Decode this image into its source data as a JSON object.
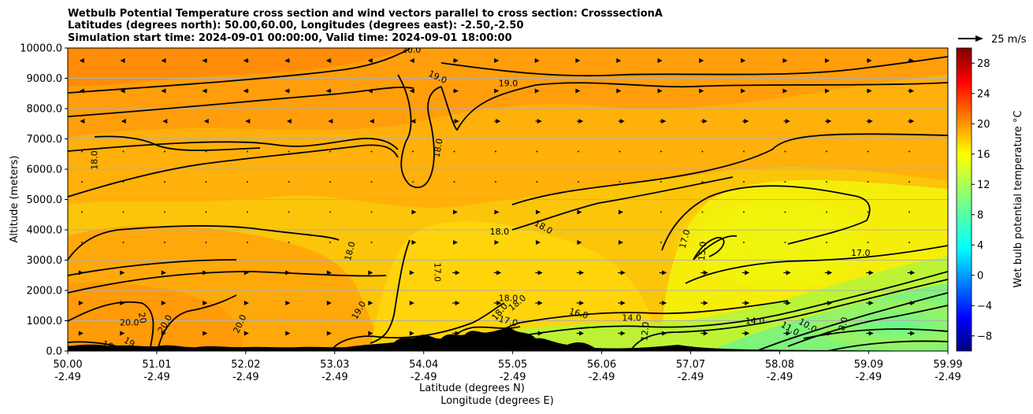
{
  "chart_data": {
    "type": "heatmap",
    "title_lines": [
      "Wetbulb Potential Temperature cross section and wind vectors parallel to cross section: CrosssectionA",
      "Latitudes (degrees north): 50.00,60.00, Longitudes (degrees east): -2.50,-2.50",
      "Simulation start time: 2024-09-01 00:00:00, Valid time: 2024-09-01 18:00:00"
    ],
    "ylabel": "Altitude (meters)",
    "xlabel_lines": [
      "Latitude (degrees N)",
      "Longitude (degrees E)"
    ],
    "ylim": [
      0,
      10000
    ],
    "xlim": [
      50.0,
      59.99
    ],
    "y_ticks": [
      {
        "value": 0,
        "label": "0.0"
      },
      {
        "value": 1000,
        "label": "1000.0"
      },
      {
        "value": 2000,
        "label": "2000.0"
      },
      {
        "value": 3000,
        "label": "3000.0"
      },
      {
        "value": 4000,
        "label": "4000.0"
      },
      {
        "value": 5000,
        "label": "5000.0"
      },
      {
        "value": 6000,
        "label": "6000.0"
      },
      {
        "value": 7000,
        "label": "7000.0"
      },
      {
        "value": 8000,
        "label": "8000.0"
      },
      {
        "value": 9000,
        "label": "9000.0"
      },
      {
        "value": 10000,
        "label": "10000.0"
      }
    ],
    "x_ticks": [
      {
        "value": 50.0,
        "lat": "50.00",
        "lon": "-2.49"
      },
      {
        "value": 51.01,
        "lat": "51.01",
        "lon": "-2.49"
      },
      {
        "value": 52.02,
        "lat": "52.02",
        "lon": "-2.49"
      },
      {
        "value": 53.03,
        "lat": "53.03",
        "lon": "-2.49"
      },
      {
        "value": 54.04,
        "lat": "54.04",
        "lon": "-2.49"
      },
      {
        "value": 55.05,
        "lat": "55.05",
        "lon": "-2.49"
      },
      {
        "value": 56.06,
        "lat": "56.06",
        "lon": "-2.49"
      },
      {
        "value": 57.07,
        "lat": "57.07",
        "lon": "-2.49"
      },
      {
        "value": 58.08,
        "lat": "58.08",
        "lon": "-2.49"
      },
      {
        "value": 59.09,
        "lat": "59.09",
        "lon": "-2.49"
      },
      {
        "value": 59.99,
        "lat": "59.99",
        "lon": "-2.49"
      }
    ],
    "grid": "horizontal",
    "colorbar": {
      "label": "Wet bulb potential temperature $^\\circ$C",
      "label_display": "Wet bulb potential temperature °C",
      "range": [
        -10,
        30
      ],
      "ticks": [
        {
          "value": -8,
          "label": "−8"
        },
        {
          "value": -4,
          "label": "−4"
        },
        {
          "value": 0,
          "label": "0"
        },
        {
          "value": 4,
          "label": "4"
        },
        {
          "value": 8,
          "label": "8"
        },
        {
          "value": 12,
          "label": "12"
        },
        {
          "value": 16,
          "label": "16"
        },
        {
          "value": 20,
          "label": "20"
        },
        {
          "value": 24,
          "label": "24"
        },
        {
          "value": 28,
          "label": "28"
        }
      ],
      "colormap": "jet"
    },
    "quiver_key": {
      "label": "25 m/s",
      "speed": 25
    },
    "contour_labels": [
      {
        "text": "20.0",
        "x": 53.9,
        "y": 9950
      },
      {
        "text": "19.0",
        "x": 54.2,
        "y": 9050,
        "rot": 25
      },
      {
        "text": "19.0",
        "x": 55.0,
        "y": 8850
      },
      {
        "text": "18.0",
        "x": 50.3,
        "y": 6300,
        "rot": -90
      },
      {
        "text": "18.0",
        "x": 54.2,
        "y": 6700,
        "rot": -80
      },
      {
        "text": "18.0",
        "x": 54.9,
        "y": 3950
      },
      {
        "text": "18.0",
        "x": 55.4,
        "y": 4100,
        "rot": 30
      },
      {
        "text": "18.0",
        "x": 53.2,
        "y": 3300,
        "rot": -75
      },
      {
        "text": "17.0",
        "x": 54.2,
        "y": 2600,
        "rot": 90
      },
      {
        "text": "17.0",
        "x": 57.0,
        "y": 3700,
        "rot": -75
      },
      {
        "text": "15.0",
        "x": 57.2,
        "y": 3300,
        "rot": -85
      },
      {
        "text": "17.0",
        "x": 59.0,
        "y": 3250
      },
      {
        "text": "20.0",
        "x": 50.7,
        "y": 950
      },
      {
        "text": "20",
        "x": 50.85,
        "y": 1100,
        "rot": 80
      },
      {
        "text": "20.0",
        "x": 51.1,
        "y": 900,
        "rot": -60
      },
      {
        "text": "20.0",
        "x": 51.95,
        "y": 900,
        "rot": -65
      },
      {
        "text": "19.0",
        "x": 53.3,
        "y": 1350,
        "rot": -60
      },
      {
        "text": "18.0",
        "x": 50.5,
        "y": 150,
        "rot": 20
      },
      {
        "text": "19",
        "x": 50.7,
        "y": 300,
        "rot": 30
      },
      {
        "text": "18.0",
        "x": 55.0,
        "y": 1750
      },
      {
        "text": "18.0",
        "x": 54.9,
        "y": 1300,
        "rot": -50
      },
      {
        "text": "18.0",
        "x": 55.1,
        "y": 1600,
        "rot": -40
      },
      {
        "text": "17.0",
        "x": 55.0,
        "y": 1000,
        "rot": 15
      },
      {
        "text": "16.0",
        "x": 55.8,
        "y": 1250,
        "rot": 15
      },
      {
        "text": "14.0",
        "x": 56.4,
        "y": 1100
      },
      {
        "text": "12.0",
        "x": 56.55,
        "y": 650,
        "rot": -85
      },
      {
        "text": "14.0",
        "x": 57.8,
        "y": 1000
      },
      {
        "text": "11.0",
        "x": 58.2,
        "y": 750,
        "rot": 30
      },
      {
        "text": "10.0",
        "x": 58.4,
        "y": 850,
        "rot": 30
      },
      {
        "text": "8.0",
        "x": 58.8,
        "y": 900,
        "rot": -75
      }
    ]
  }
}
